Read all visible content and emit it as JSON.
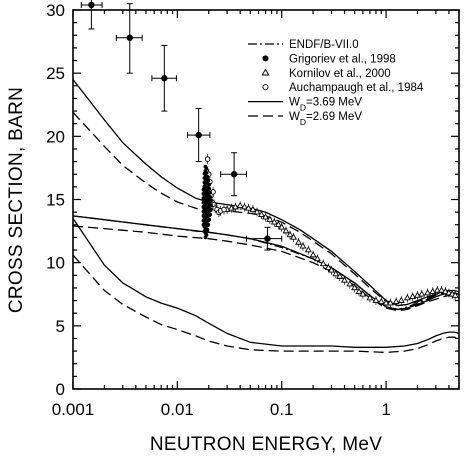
{
  "chart_data": {
    "type": "scatter",
    "xscale": "log",
    "xlim": [
      0.001,
      5
    ],
    "ylim": [
      0,
      30
    ],
    "xlabel": "NEUTRON ENERGY,  MeV",
    "ylabel": "CROSS SECTION, BARN",
    "xticks": [
      0.001,
      0.01,
      0.1,
      1
    ],
    "xtick_labels": [
      "0.001",
      "0.01",
      "0.1",
      "1"
    ],
    "yticks": [
      0,
      5,
      10,
      15,
      20,
      25,
      30
    ],
    "ytick_labels": [
      "0",
      "5",
      "10",
      "15",
      "20",
      "25",
      "30"
    ],
    "grid": false,
    "legend_position": "top-right",
    "legend": [
      {
        "label": "ENDF/B-VII.0",
        "style": "dash-dot"
      },
      {
        "label": "Grigoriev et al., 1998",
        "style": "filled-circle"
      },
      {
        "label": "Kornilov et al., 2000",
        "style": "open-triangle"
      },
      {
        "label": "Auchampaugh et al., 1984",
        "style": "open-circle"
      },
      {
        "label_prefix": "W",
        "label_sub": "D",
        "label_suffix": "=3.69 MeV",
        "style": "solid"
      },
      {
        "label_prefix": "W",
        "label_sub": "D",
        "label_suffix": "=2.69 MeV",
        "style": "dashed"
      }
    ],
    "series": [
      {
        "name": "Grigoriev et al., 1998",
        "marker": "filled-circle",
        "points": [
          {
            "x": 0.0015,
            "y": 30.4,
            "xerr": [
              0.0012,
              0.0019
            ],
            "yerr": [
              28.5,
              32.0
            ]
          },
          {
            "x": 0.0035,
            "y": 27.8,
            "xerr": [
              0.0026,
              0.0046
            ],
            "yerr": [
              25.0,
              30.5
            ]
          },
          {
            "x": 0.0075,
            "y": 24.6,
            "xerr": [
              0.0057,
              0.0098
            ],
            "yerr": [
              22.0,
              27.2
            ]
          },
          {
            "x": 0.016,
            "y": 20.1,
            "xerr": [
              0.0125,
              0.0205
            ],
            "yerr": [
              18.0,
              22.2
            ]
          },
          {
            "x": 0.035,
            "y": 17.0,
            "xerr": [
              0.026,
              0.046
            ],
            "yerr": [
              15.3,
              18.7
            ]
          },
          {
            "x": 0.073,
            "y": 11.9,
            "xerr": [
              0.046,
              0.1
            ],
            "yerr": [
              11.0,
              12.8
            ]
          }
        ]
      },
      {
        "name": "Kornilov et al., 2000",
        "marker": "open-triangle",
        "x": [
          0.03,
          0.033,
          0.036,
          0.04,
          0.044,
          0.048,
          0.053,
          0.058,
          0.064,
          0.07,
          0.077,
          0.085,
          0.093,
          0.1,
          0.11,
          0.12,
          0.13,
          0.145,
          0.16,
          0.18,
          0.2,
          0.22,
          0.25,
          0.28,
          0.3,
          0.33,
          0.36,
          0.4,
          0.45,
          0.5,
          0.55,
          0.6,
          0.7,
          0.8,
          0.9,
          1.0,
          1.1,
          1.25,
          1.4,
          1.6,
          1.8,
          2.0,
          2.2,
          2.5,
          2.8,
          3.1,
          3.4,
          3.7,
          4.0,
          4.3,
          4.6
        ],
        "y": [
          14.2,
          14.3,
          14.4,
          14.5,
          14.4,
          14.3,
          14.2,
          14.0,
          13.8,
          13.6,
          13.4,
          13.2,
          13.0,
          12.8,
          12.5,
          12.2,
          12.0,
          11.6,
          11.3,
          11.0,
          10.6,
          10.3,
          9.9,
          9.6,
          9.4,
          9.1,
          8.9,
          8.6,
          8.3,
          8.0,
          7.7,
          7.5,
          7.2,
          7.0,
          6.9,
          6.8,
          6.8,
          6.9,
          7.0,
          7.2,
          7.3,
          7.4,
          7.5,
          7.6,
          7.7,
          7.8,
          7.8,
          7.7,
          7.6,
          7.5,
          7.4
        ]
      },
      {
        "name": "Auchampaugh et al., 1984",
        "marker": "open-circle",
        "x": [
          0.0185,
          0.019,
          0.0195,
          0.02,
          0.0205,
          0.021,
          0.0215,
          0.022,
          0.0225,
          0.023,
          0.024,
          0.025,
          0.026,
          0.028
        ],
        "y": [
          16.0,
          17.2,
          18.2,
          17.0,
          16.4,
          15.3,
          14.8,
          15.6,
          14.6,
          14.3,
          14.2,
          14.0,
          14.1,
          14.2
        ]
      },
      {
        "name": "ENDF/B-VII.0",
        "style": "dash-dot",
        "x": [
          0.001,
          0.002,
          0.005,
          0.01,
          0.015,
          0.02,
          0.03,
          0.05,
          0.1,
          0.2,
          0.3,
          0.5,
          0.7,
          1,
          1.3,
          1.6,
          2,
          2.5,
          3,
          3.5,
          4,
          4.5,
          5
        ],
        "y": [
          13.7,
          13.4,
          13.0,
          12.7,
          12.5,
          12.4,
          12.2,
          11.9,
          11.2,
          10.3,
          9.6,
          8.4,
          7.4,
          6.5,
          6.3,
          6.5,
          6.8,
          7.1,
          7.3,
          7.5,
          7.6,
          7.6,
          7.5
        ]
      },
      {
        "name": "W_D=3.69 MeV",
        "style": "solid",
        "curves": [
          {
            "x": [
              0.001,
              0.002,
              0.003,
              0.005,
              0.007,
              0.01,
              0.015,
              0.02,
              0.03,
              0.05,
              0.07,
              0.1,
              0.15,
              0.2,
              0.3,
              0.5,
              0.7,
              1,
              1.3,
              1.6,
              2,
              2.5,
              3,
              3.5,
              4,
              4.5,
              5
            ],
            "y": [
              24.5,
              21.3,
              19.5,
              17.8,
              16.8,
              15.9,
              15.1,
              14.8,
              14.6,
              14.3,
              14.0,
              13.4,
              12.6,
              11.9,
              10.9,
              9.3,
              8.2,
              7.0,
              6.6,
              6.7,
              7.0,
              7.3,
              7.5,
              7.7,
              7.8,
              7.8,
              7.7
            ]
          },
          {
            "x": [
              0.001,
              0.002,
              0.005,
              0.01,
              0.02,
              0.03,
              0.05,
              0.1,
              0.2,
              0.3,
              0.5,
              0.7,
              1,
              1.3,
              1.6,
              2,
              2.5,
              3,
              3.5,
              4,
              4.5,
              5
            ],
            "y": [
              13.7,
              13.4,
              13.0,
              12.7,
              12.4,
              12.2,
              11.9,
              11.3,
              10.3,
              9.6,
              8.4,
              7.4,
              6.5,
              6.3,
              6.4,
              6.7,
              7.0,
              7.3,
              7.5,
              7.6,
              7.6,
              7.5
            ]
          },
          {
            "x": [
              0.001,
              0.002,
              0.003,
              0.005,
              0.007,
              0.01,
              0.015,
              0.02,
              0.03,
              0.05,
              0.1,
              0.2,
              0.3,
              0.5,
              1,
              1.5,
              2,
              2.5,
              3,
              3.5,
              4,
              4.5,
              5
            ],
            "y": [
              13.5,
              9.8,
              8.4,
              7.3,
              6.8,
              6.4,
              5.8,
              5.2,
              4.4,
              3.7,
              3.4,
              3.4,
              3.4,
              3.3,
              3.3,
              3.4,
              3.6,
              3.9,
              4.2,
              4.4,
              4.5,
              4.5,
              4.4
            ]
          }
        ]
      },
      {
        "name": "W_D=2.69 MeV",
        "style": "dashed",
        "curves": [
          {
            "x": [
              0.001,
              0.002,
              0.003,
              0.005,
              0.007,
              0.01,
              0.015,
              0.02,
              0.03,
              0.05,
              0.07,
              0.1,
              0.15,
              0.2,
              0.3,
              0.5,
              0.7,
              1,
              1.3,
              1.6,
              2,
              2.5,
              3,
              3.5,
              4,
              4.5,
              5
            ],
            "y": [
              21.9,
              19.2,
              17.7,
              16.3,
              15.5,
              14.8,
              14.3,
              14.1,
              14.1,
              13.9,
              13.7,
              13.2,
              12.4,
              11.7,
              10.7,
              9.1,
              8.0,
              6.9,
              6.6,
              6.7,
              6.9,
              7.2,
              7.4,
              7.6,
              7.6,
              7.6,
              7.5
            ]
          },
          {
            "x": [
              0.001,
              0.002,
              0.005,
              0.01,
              0.02,
              0.03,
              0.05,
              0.1,
              0.2,
              0.3,
              0.5,
              0.7,
              1,
              1.3,
              1.6,
              2,
              2.5,
              3,
              3.5,
              4,
              4.5,
              5
            ],
            "y": [
              12.9,
              12.7,
              12.4,
              12.1,
              11.9,
              11.7,
              11.4,
              10.9,
              10.0,
              9.3,
              8.2,
              7.2,
              6.4,
              6.2,
              6.3,
              6.6,
              6.9,
              7.1,
              7.3,
              7.4,
              7.4,
              7.3
            ]
          },
          {
            "x": [
              0.001,
              0.002,
              0.003,
              0.005,
              0.007,
              0.01,
              0.015,
              0.02,
              0.03,
              0.05,
              0.1,
              0.2,
              0.3,
              0.5,
              1,
              1.5,
              2,
              2.5,
              3,
              3.5,
              4,
              4.5,
              5
            ],
            "y": [
              10.6,
              7.8,
              6.7,
              5.7,
              5.1,
              4.7,
              4.2,
              3.8,
              3.4,
              3.1,
              3.0,
              3.0,
              3.0,
              3.0,
              2.9,
              3.0,
              3.2,
              3.5,
              3.8,
              4.0,
              4.1,
              4.1,
              4.0
            ]
          }
        ]
      }
    ]
  }
}
